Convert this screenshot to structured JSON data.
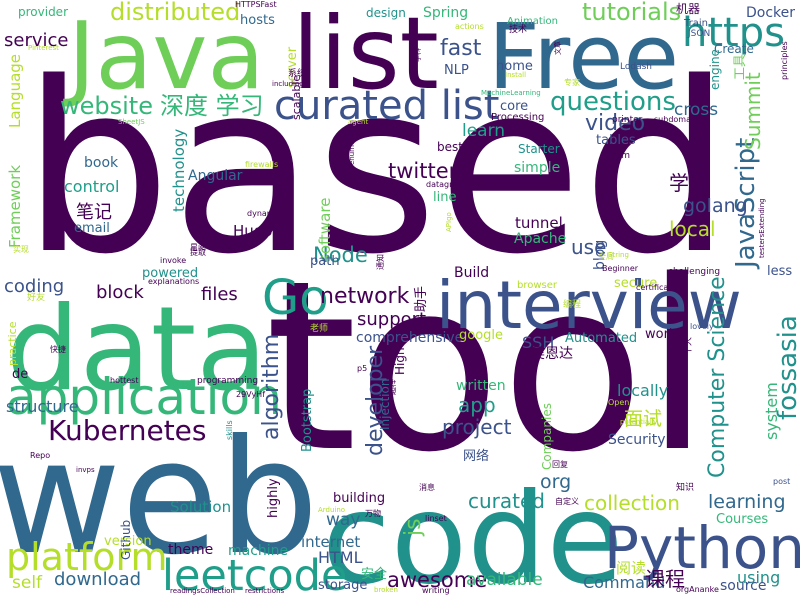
{
  "palette": {
    "dark_purple": "#440154",
    "indigo": "#3b528b",
    "teal_blue": "#31688e",
    "teal": "#21918c",
    "green_teal": "#1f9e89",
    "green": "#35b779",
    "light_green": "#6ece58",
    "lime": "#b5de2b",
    "yellow": "#fde725"
  },
  "words": [
    {
      "text": "based",
      "color": "#440154"
    },
    {
      "text": "tool",
      "color": "#440154"
    },
    {
      "text": "web",
      "color": "#31688e"
    },
    {
      "text": "code",
      "color": "#21918c"
    },
    {
      "text": "data",
      "color": "#35b779"
    },
    {
      "text": "Java",
      "color": "#6ece58"
    },
    {
      "text": "list",
      "color": "#440154"
    },
    {
      "text": "Free",
      "color": "#31688e"
    },
    {
      "text": "interview",
      "color": "#3b528b"
    },
    {
      "text": "Python",
      "color": "#3b528b"
    },
    {
      "text": "application",
      "color": "#35b779"
    },
    {
      "text": "curated list",
      "color": "#3b528b"
    },
    {
      "text": "leetcode",
      "color": "#1f9e89"
    },
    {
      "text": "platform",
      "color": "#b5de2b"
    },
    {
      "text": "Go",
      "color": "#1f9e89"
    },
    {
      "text": "https",
      "color": "#21918c"
    },
    {
      "text": "Kubernetes",
      "color": "#440154"
    },
    {
      "text": "website",
      "color": "#35b779"
    },
    {
      "text": "深度 学习",
      "color": "#35b779"
    },
    {
      "text": "questions",
      "color": "#1f9e89"
    },
    {
      "text": "JavaScript",
      "color": "#31688e"
    },
    {
      "text": "fossasia",
      "color": "#21918c"
    },
    {
      "text": "Summit",
      "color": "#6ece58"
    },
    {
      "text": "distributed",
      "color": "#b5de2b"
    },
    {
      "text": "tutorials",
      "color": "#6ece58"
    },
    {
      "text": "Computer Science",
      "color": "#21918c"
    },
    {
      "text": "network",
      "color": "#440154"
    },
    {
      "text": "fast",
      "color": "#3b528b"
    },
    {
      "text": "video",
      "color": "#3b528b"
    },
    {
      "text": "learn",
      "color": "#1f9e89"
    },
    {
      "text": "twitter",
      "color": "#440154"
    },
    {
      "text": "awesome",
      "color": "#440154"
    },
    {
      "text": "collection",
      "color": "#b5de2b"
    },
    {
      "text": "curated",
      "color": "#21918c"
    },
    {
      "text": "learning",
      "color": "#31688e"
    },
    {
      "text": "project",
      "color": "#3b528b"
    },
    {
      "text": "algorithm",
      "color": "#3b528b"
    },
    {
      "text": "developer",
      "color": "#3b528b"
    },
    {
      "text": "面试",
      "color": "#b5de2b"
    },
    {
      "text": "Node",
      "color": "#21918c"
    },
    {
      "text": "app",
      "color": "#1f9e89"
    },
    {
      "text": "local",
      "color": "#b5de2b"
    },
    {
      "text": "use",
      "color": "#3b528b"
    },
    {
      "text": "golang",
      "color": "#3b528b"
    },
    {
      "text": "学习",
      "color": "#440154"
    },
    {
      "text": "service",
      "color": "#440154"
    },
    {
      "text": "files",
      "color": "#440154"
    },
    {
      "text": "support",
      "color": "#440154"
    },
    {
      "text": "coding",
      "color": "#3b528b"
    },
    {
      "text": "block",
      "color": "#440154"
    },
    {
      "text": "控制",
      "color": "#440154"
    },
    {
      "text": "control",
      "color": "#1f9e89"
    },
    {
      "text": "笔记",
      "color": "#440154"
    },
    {
      "text": "structure",
      "color": "#31688e"
    },
    {
      "text": "locally",
      "color": "#21918c"
    },
    {
      "text": "Security",
      "color": "#3b528b"
    },
    {
      "text": "download",
      "color": "#31688e"
    },
    {
      "text": "HTML",
      "color": "#3b528b"
    },
    {
      "text": "Command",
      "color": "#31688e"
    },
    {
      "text": "课程",
      "color": "#440154"
    },
    {
      "text": "using",
      "color": "#21918c"
    },
    {
      "text": "available",
      "color": "#35b779"
    },
    {
      "text": "internet",
      "color": "#31688e"
    },
    {
      "text": "way",
      "color": "#31688e"
    },
    {
      "text": "js",
      "color": "#6ece58"
    },
    {
      "text": "org",
      "color": "#31688e"
    },
    {
      "text": "machine",
      "color": "#1f9e89"
    },
    {
      "text": "Solution",
      "color": "#21918c"
    },
    {
      "text": "Courses",
      "color": "#35b779"
    },
    {
      "text": "comprehensive",
      "color": "#3b528b"
    },
    {
      "text": "SSH",
      "color": "#3b528b"
    },
    {
      "text": "Framework",
      "color": "#6ece58"
    },
    {
      "text": "Language",
      "color": "#b5de2b"
    },
    {
      "text": "system",
      "color": "#35b779"
    },
    {
      "text": "blog",
      "color": "#3b528b"
    },
    {
      "text": "cross",
      "color": "#31688e"
    },
    {
      "text": "software",
      "color": "#6ece58"
    },
    {
      "text": "technology",
      "color": "#21918c"
    },
    {
      "text": "book",
      "color": "#31688e"
    },
    {
      "text": "email",
      "color": "#31688e"
    },
    {
      "text": "Hugo",
      "color": "#440154"
    },
    {
      "text": "Angular",
      "color": "#31688e"
    },
    {
      "text": "Apache",
      "color": "#35b779"
    },
    {
      "text": "tunnel",
      "color": "#440154"
    },
    {
      "text": "simple",
      "color": "#35b779"
    },
    {
      "text": "Build",
      "color": "#440154"
    },
    {
      "text": "path",
      "color": "#3b528b"
    },
    {
      "text": "powered",
      "color": "#21918c"
    },
    {
      "text": "self",
      "color": "#b5de2b"
    },
    {
      "text": "version",
      "color": "#b5de2b"
    },
    {
      "text": "theme",
      "color": "#440154"
    },
    {
      "text": "storage",
      "color": "#3b528b"
    },
    {
      "text": "安全",
      "color": "#35b779"
    },
    {
      "text": "阅读",
      "color": "#b5de2b"
    },
    {
      "text": "source",
      "color": "#3b528b"
    },
    {
      "text": "less",
      "color": "#3b528b"
    },
    {
      "text": "secure",
      "color": "#b5de2b"
    },
    {
      "text": "world",
      "color": "#440154"
    },
    {
      "text": "google",
      "color": "#b5de2b"
    },
    {
      "text": "written",
      "color": "#35b779"
    },
    {
      "text": "Automated",
      "color": "#21918c"
    },
    {
      "text": "吴恩达",
      "color": "#440154"
    },
    {
      "text": "Docker",
      "color": "#3b528b"
    },
    {
      "text": "design",
      "color": "#21918c"
    },
    {
      "text": "Spring",
      "color": "#35b779"
    },
    {
      "text": "hosts",
      "color": "#31688e"
    },
    {
      "text": "provider",
      "color": "#35b779"
    },
    {
      "text": "server",
      "color": "#b5de2b"
    },
    {
      "text": "scalable",
      "color": "#440154"
    },
    {
      "text": "NLP",
      "color": "#3b528b"
    },
    {
      "text": "home",
      "color": "#3b528b"
    },
    {
      "text": "core",
      "color": "#3b528b"
    },
    {
      "text": "best",
      "color": "#440154"
    },
    {
      "text": "line",
      "color": "#35b779"
    },
    {
      "text": "Starter",
      "color": "#21918c"
    },
    {
      "text": "Create",
      "color": "#31688e"
    },
    {
      "text": "Train",
      "color": "#3b528b"
    },
    {
      "text": "engine",
      "color": "#21918c"
    },
    {
      "text": "tables",
      "color": "#3b528b"
    },
    {
      "text": "Github",
      "color": "#3b528b"
    },
    {
      "text": "highly",
      "color": "#440154"
    },
    {
      "text": "building",
      "color": "#440154"
    },
    {
      "text": "Bootstrap",
      "color": "#21918c"
    },
    {
      "text": "Injection",
      "color": "#31688e"
    },
    {
      "text": "High",
      "color": "#440154"
    },
    {
      "text": "Companies",
      "color": "#6ece58"
    },
    {
      "text": "网络",
      "color": "#3b528b"
    },
    {
      "text": "随想",
      "color": "#440154"
    },
    {
      "text": "助手",
      "color": "#440154"
    },
    {
      "text": "de",
      "color": "#440154"
    },
    {
      "text": "practice",
      "color": "#b5de2b"
    },
    {
      "text": "Animation",
      "color": "#35b779"
    },
    {
      "text": "Processing",
      "color": "#440154"
    },
    {
      "text": "机器",
      "color": "#440154"
    },
    {
      "text": "工具",
      "color": "#6ece58"
    },
    {
      "text": "JSON",
      "color": "#3b528b"
    },
    {
      "text": "Lodash",
      "color": "#3b528b"
    },
    {
      "text": "Steam",
      "color": "#440154"
    },
    {
      "text": "printer",
      "color": "#440154"
    },
    {
      "text": "subdomains",
      "color": "#440154"
    },
    {
      "text": "browser",
      "color": "#b5de2b"
    },
    {
      "text": "Beginner",
      "color": "#440154"
    },
    {
      "text": "certificate",
      "color": "#440154"
    },
    {
      "text": "lovely",
      "color": "#3b528b"
    },
    {
      "text": "post",
      "color": "#3b528b"
    },
    {
      "text": "challenging",
      "color": "#440154"
    },
    {
      "text": "testersExtending",
      "color": "#440154"
    },
    {
      "text": "principles",
      "color": "#440154"
    },
    {
      "text": "DiscoveryMerlin",
      "color": "#440154"
    },
    {
      "text": "datagrids",
      "color": "#440154"
    },
    {
      "text": "firewalls",
      "color": "#b5de2b"
    },
    {
      "text": "dynamic",
      "color": "#440154"
    },
    {
      "text": "invoke",
      "color": "#440154"
    },
    {
      "text": "explanations",
      "color": "#440154"
    },
    {
      "text": "hottest",
      "color": "#440154"
    },
    {
      "text": "programming",
      "color": "#440154"
    },
    {
      "text": "29VyHf",
      "color": "#440154"
    },
    {
      "text": "Repo",
      "color": "#440154"
    },
    {
      "text": "skills",
      "color": "#21918c"
    },
    {
      "text": "readingsCollection",
      "color": "#440154"
    },
    {
      "text": "restrictions",
      "color": "#440154"
    },
    {
      "text": "broken",
      "color": "#b5de2b"
    },
    {
      "text": "writing",
      "color": "#440154"
    },
    {
      "text": "orgAnanke",
      "color": "#440154"
    },
    {
      "text": "linset",
      "color": "#440154"
    },
    {
      "text": "HTTPSFast",
      "color": "#440154"
    },
    {
      "text": "actions",
      "color": "#b5de2b"
    },
    {
      "text": "Install",
      "color": "#b5de2b"
    },
    {
      "text": "MachineLearning",
      "color": "#35b779"
    },
    {
      "text": "enumeration",
      "color": "#440154"
    },
    {
      "text": "agent",
      "color": "#b5de2b"
    },
    {
      "text": "SheetJS",
      "color": "#6ece58"
    },
    {
      "text": "Pinterest",
      "color": "#b5de2b"
    },
    {
      "text": "including",
      "color": "#440154"
    },
    {
      "text": "Open",
      "color": "#b5de2b"
    },
    {
      "text": "potentially",
      "color": "#b5de2b"
    },
    {
      "text": "APIgo",
      "color": "#b5de2b"
    },
    {
      "text": "String",
      "color": "#b5de2b"
    },
    {
      "text": "系统",
      "color": "#440154"
    },
    {
      "text": "技术",
      "color": "#440154"
    },
    {
      "text": "学科",
      "color": "#440154"
    },
    {
      "text": "专家",
      "color": "#b5de2b"
    },
    {
      "text": "编程",
      "color": "#b5de2b"
    },
    {
      "text": "个人",
      "color": "#440154"
    },
    {
      "text": "知识",
      "color": "#440154"
    },
    {
      "text": "自定义",
      "color": "#440154"
    },
    {
      "text": "回复",
      "color": "#440154"
    },
    {
      "text": "消息",
      "color": "#440154"
    },
    {
      "text": "操作系统",
      "color": "#440154"
    },
    {
      "text": "星阅",
      "color": "#440154"
    },
    {
      "text": "快捷",
      "color": "#440154"
    },
    {
      "text": "好友",
      "color": "#b5de2b"
    },
    {
      "text": "实现",
      "color": "#b5de2b"
    },
    {
      "text": "老师",
      "color": "#b5de2b"
    },
    {
      "text": "超棒",
      "color": "#440154"
    },
    {
      "text": "万物",
      "color": "#440154"
    },
    {
      "text": "全局",
      "color": "#b5de2b"
    },
    {
      "text": "通知",
      "color": "#440154"
    },
    {
      "text": "Arduino",
      "color": "#b5de2b"
    },
    {
      "text": "p5",
      "color": "#440154"
    },
    {
      "text": "invps",
      "color": "#440154"
    },
    {
      "text": "遮罩",
      "color": "#440154"
    },
    {
      "text": "提取",
      "color": "#440154"
    },
    {
      "text": "文章",
      "color": "#440154"
    }
  ]
}
